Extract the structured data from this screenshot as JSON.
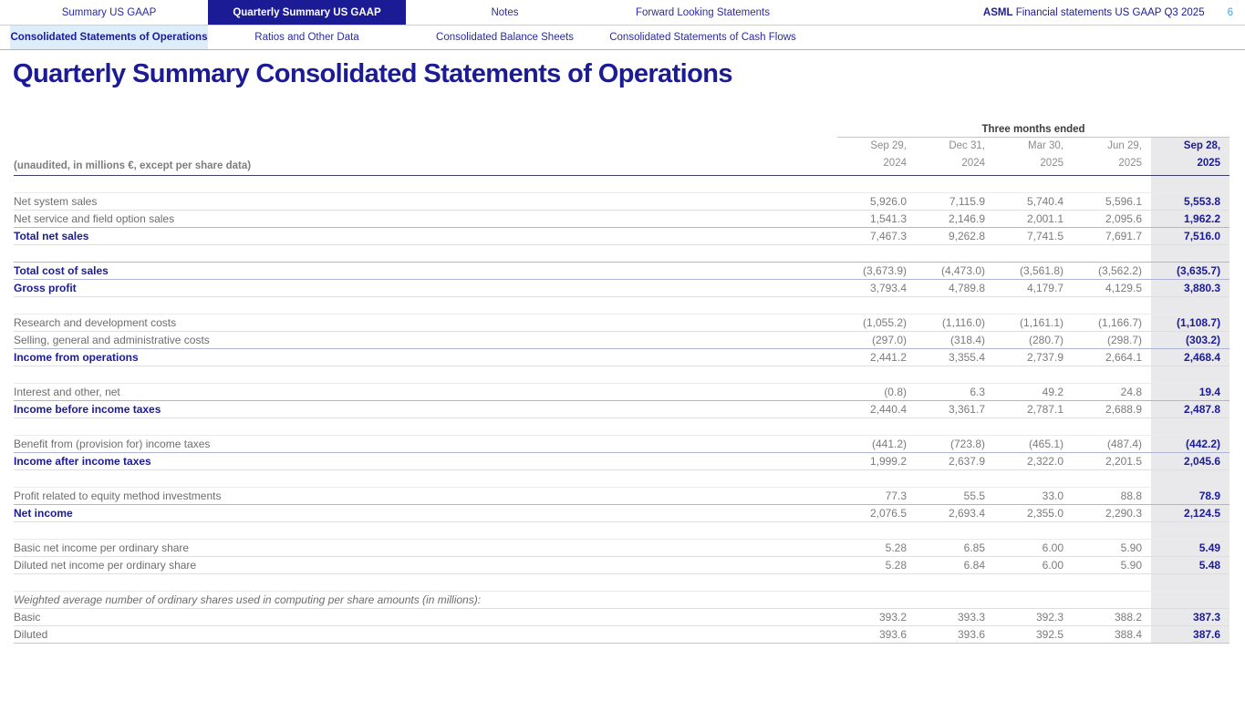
{
  "nav": {
    "tabs": [
      {
        "label": "Summary US GAAP",
        "active": false
      },
      {
        "label": "Quarterly Summary US GAAP",
        "active": true
      },
      {
        "label": "Notes",
        "active": false
      },
      {
        "label": "Forward Looking Statements",
        "active": false
      }
    ],
    "brand_bold": "ASML",
    "brand_rest": " Financial statements US GAAP Q3 2025",
    "page_number": "6"
  },
  "subnav": {
    "tabs": [
      {
        "label": "Consolidated Statements of Operations",
        "active": true
      },
      {
        "label": "Ratios and Other Data",
        "active": false
      },
      {
        "label": "Consolidated Balance Sheets",
        "active": false
      },
      {
        "label": "Consolidated Statements of Cash Flows",
        "active": false
      }
    ]
  },
  "page_title": "Quarterly Summary Consolidated Statements of Operations",
  "table": {
    "unaudited_note": "(unaudited, in millions €, except per share data)",
    "group_header": "Three months ended",
    "columns": [
      {
        "line1": "Sep 29,",
        "line2": "2024",
        "highlight": false
      },
      {
        "line1": "Dec 31,",
        "line2": "2024",
        "highlight": false
      },
      {
        "line1": "Mar 30,",
        "line2": "2025",
        "highlight": false
      },
      {
        "line1": "Jun 29,",
        "line2": "2025",
        "highlight": false
      },
      {
        "line1": "Sep 28,",
        "line2": "2025",
        "highlight": true
      }
    ],
    "rows": [
      {
        "style": "spacer"
      },
      {
        "style": "normal",
        "label": "Net system sales",
        "values": [
          "5,926.0",
          "7,115.9",
          "5,740.4",
          "5,596.1",
          "5,553.8"
        ]
      },
      {
        "style": "normal",
        "label": "Net service and field option sales",
        "values": [
          "1,541.3",
          "2,146.9",
          "2,001.1",
          "2,095.6",
          "1,962.2"
        ]
      },
      {
        "style": "bold",
        "label": "Total net sales",
        "values": [
          "7,467.3",
          "9,262.8",
          "7,741.5",
          "7,691.7",
          "7,516.0"
        ]
      },
      {
        "style": "spacer"
      },
      {
        "style": "bold",
        "label": "Total cost of sales",
        "values": [
          "(3,673.9)",
          "(4,473.0)",
          "(3,561.8)",
          "(3,562.2)",
          "(3,635.7)"
        ]
      },
      {
        "style": "bold",
        "label": "Gross profit",
        "values": [
          "3,793.4",
          "4,789.8",
          "4,179.7",
          "4,129.5",
          "3,880.3"
        ]
      },
      {
        "style": "spacer"
      },
      {
        "style": "normal",
        "label": "Research and development costs",
        "values": [
          "(1,055.2)",
          "(1,116.0)",
          "(1,161.1)",
          "(1,166.7)",
          "(1,108.7)"
        ]
      },
      {
        "style": "normal",
        "label": "Selling, general and administrative costs",
        "values": [
          "(297.0)",
          "(318.4)",
          "(280.7)",
          "(298.7)",
          "(303.2)"
        ]
      },
      {
        "style": "bold",
        "label": "Income from operations",
        "values": [
          "2,441.2",
          "3,355.4",
          "2,737.9",
          "2,664.1",
          "2,468.4"
        ]
      },
      {
        "style": "spacer"
      },
      {
        "style": "normal",
        "label": "Interest and other, net",
        "values": [
          "(0.8)",
          "6.3",
          "49.2",
          "24.8",
          "19.4"
        ]
      },
      {
        "style": "bold",
        "label": "Income before income taxes",
        "values": [
          "2,440.4",
          "3,361.7",
          "2,787.1",
          "2,688.9",
          "2,487.8"
        ]
      },
      {
        "style": "spacer"
      },
      {
        "style": "normal",
        "label": "Benefit from (provision for) income taxes",
        "values": [
          "(441.2)",
          "(723.8)",
          "(465.1)",
          "(487.4)",
          "(442.2)"
        ]
      },
      {
        "style": "bold",
        "label": "Income after income taxes",
        "values": [
          "1,999.2",
          "2,637.9",
          "2,322.0",
          "2,201.5",
          "2,045.6"
        ]
      },
      {
        "style": "spacer"
      },
      {
        "style": "normal",
        "label": "Profit related to equity method investments",
        "values": [
          "77.3",
          "55.5",
          "33.0",
          "88.8",
          "78.9"
        ]
      },
      {
        "style": "bold",
        "label": "Net income",
        "values": [
          "2,076.5",
          "2,693.4",
          "2,355.0",
          "2,290.3",
          "2,124.5"
        ]
      },
      {
        "style": "spacer"
      },
      {
        "style": "normal",
        "label": "Basic net income per ordinary share",
        "values": [
          "5.28",
          "6.85",
          "6.00",
          "5.90",
          "5.49"
        ]
      },
      {
        "style": "normal",
        "label": "Diluted net income per ordinary share",
        "values": [
          "5.28",
          "6.84",
          "6.00",
          "5.90",
          "5.48"
        ]
      },
      {
        "style": "spacer"
      },
      {
        "style": "italic",
        "label": "Weighted average number of ordinary shares used in computing per share amounts (in millions):",
        "values": []
      },
      {
        "style": "normal",
        "label": "Basic",
        "values": [
          "393.2",
          "393.3",
          "392.3",
          "388.2",
          "387.3"
        ]
      },
      {
        "style": "normal",
        "label": "Diluted",
        "values": [
          "393.6",
          "393.6",
          "392.5",
          "388.4",
          "387.6"
        ]
      }
    ]
  },
  "colors": {
    "brand_navy": "#1b1b96",
    "active_subtab_bg": "#ddeefa",
    "highlight_column_bg": "#e9e9ec",
    "page_number_blue": "#3ba3dc",
    "muted_text": "#6d6d6d"
  }
}
